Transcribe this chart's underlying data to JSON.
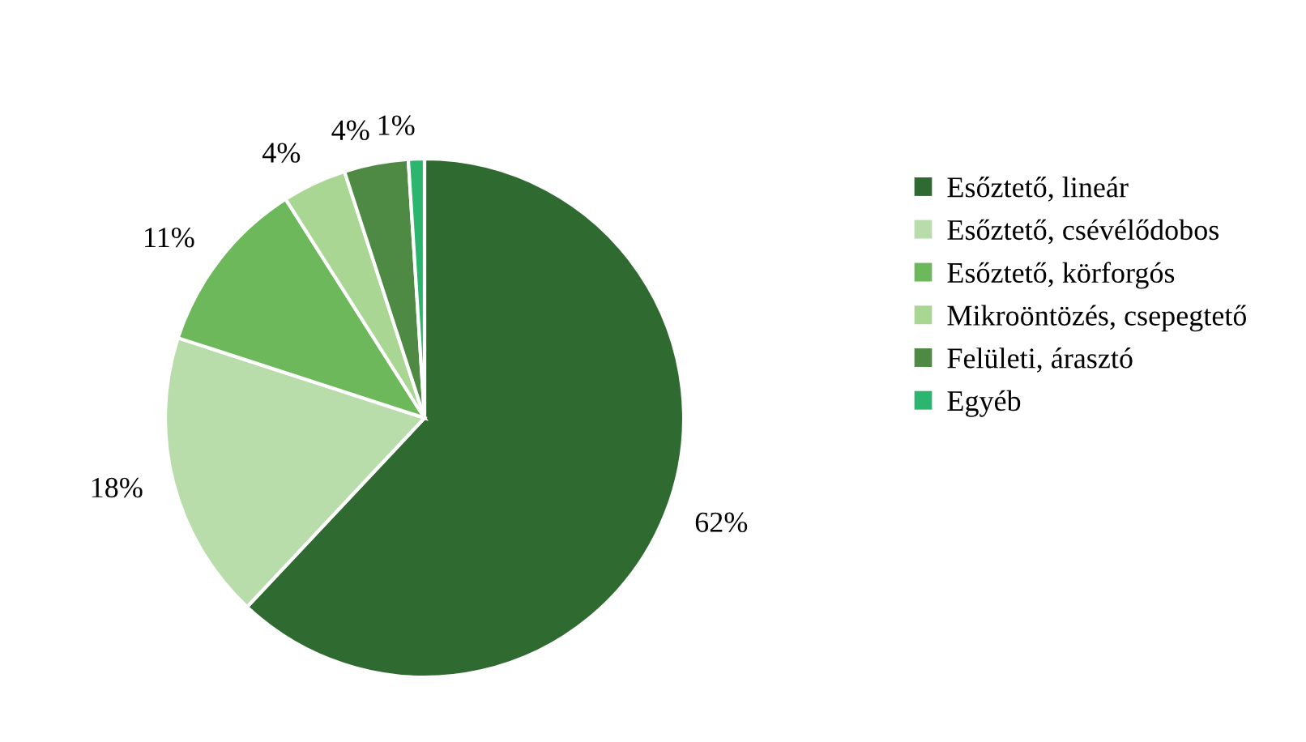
{
  "chart_data": {
    "type": "pie",
    "categories": [
      "Esőztető, lineár",
      "Esőztető, csévélődobos",
      "Esőztető, körforgós",
      "Mikroöntözés, csepegtető",
      "Felületi, árasztó",
      "Egyéb"
    ],
    "values": [
      62,
      18,
      11,
      4,
      4,
      1
    ],
    "value_labels": [
      "62%",
      "18%",
      "11%",
      "4%",
      "4%",
      "1%"
    ],
    "colors": [
      "#2f6b30",
      "#b8dcaa",
      "#6cb85b",
      "#a9d693",
      "#4e8a44",
      "#2cb56e"
    ],
    "legend": "right"
  }
}
